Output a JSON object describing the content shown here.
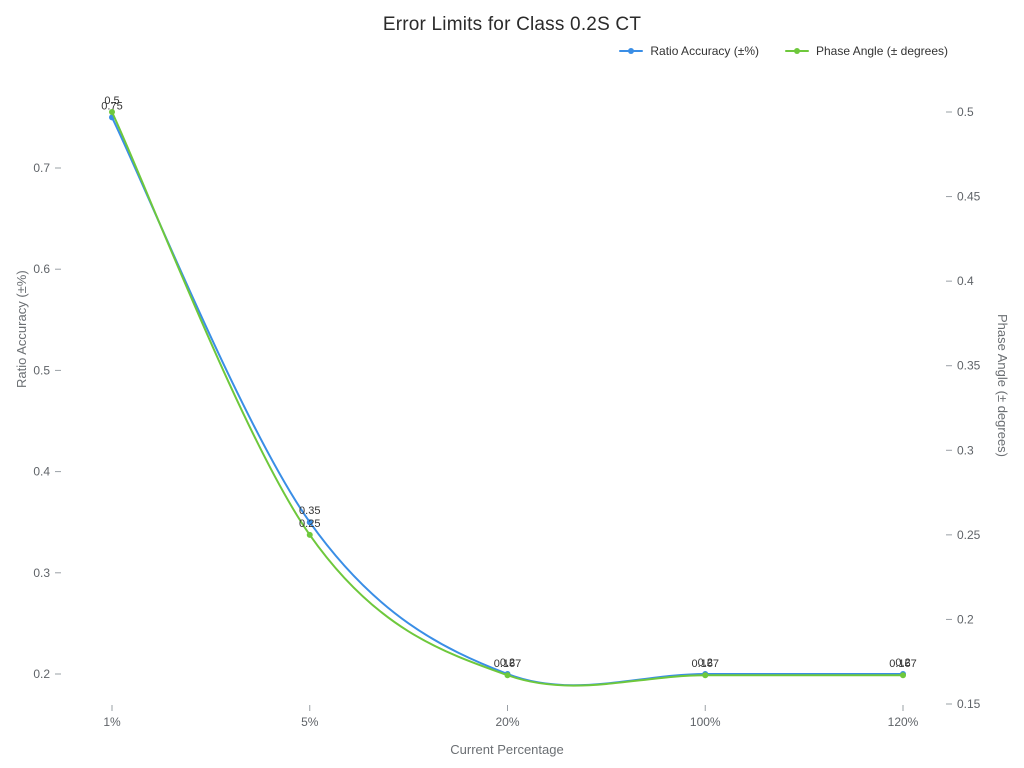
{
  "title": "Error Limits for Class 0.2S CT",
  "legend": {
    "items": [
      {
        "label": "Ratio Accuracy (±%)",
        "color": "#3a8ee6"
      },
      {
        "label": "Phase Angle (± degrees)",
        "color": "#6ec83c"
      }
    ]
  },
  "chart_data": {
    "type": "line",
    "title": "Error Limits for Class 0.2S CT",
    "categories": [
      "1%",
      "5%",
      "20%",
      "100%",
      "120%"
    ],
    "series": [
      {
        "name": "Ratio Accuracy (±%)",
        "axis": "left",
        "color": "#3a8ee6",
        "values": [
          0.75,
          0.35,
          0.2,
          0.2,
          0.2
        ],
        "labels": [
          "0.75",
          "0.35",
          "0.2",
          "0.2",
          "0.2"
        ]
      },
      {
        "name": "Phase Angle (± degrees)",
        "axis": "right",
        "color": "#6ec83c",
        "values": [
          0.5,
          0.25,
          0.167,
          0.167,
          0.167
        ],
        "labels": [
          "0.5",
          "0.25",
          "0.167",
          "0.167",
          "0.167"
        ]
      }
    ],
    "xlabel": "Current Percentage",
    "ylabel_left": "Ratio Accuracy (±%)",
    "ylabel_right": "Phase Angle (± degrees)",
    "left_axis": {
      "ticks": [
        0.2,
        0.3,
        0.4,
        0.5,
        0.6,
        0.7
      ]
    },
    "right_axis": {
      "ticks": [
        0.15,
        0.2,
        0.25,
        0.3,
        0.35,
        0.4,
        0.45,
        0.5
      ]
    },
    "smooth": true,
    "grid": false,
    "legend_position": "top-right",
    "data_labels": true
  }
}
